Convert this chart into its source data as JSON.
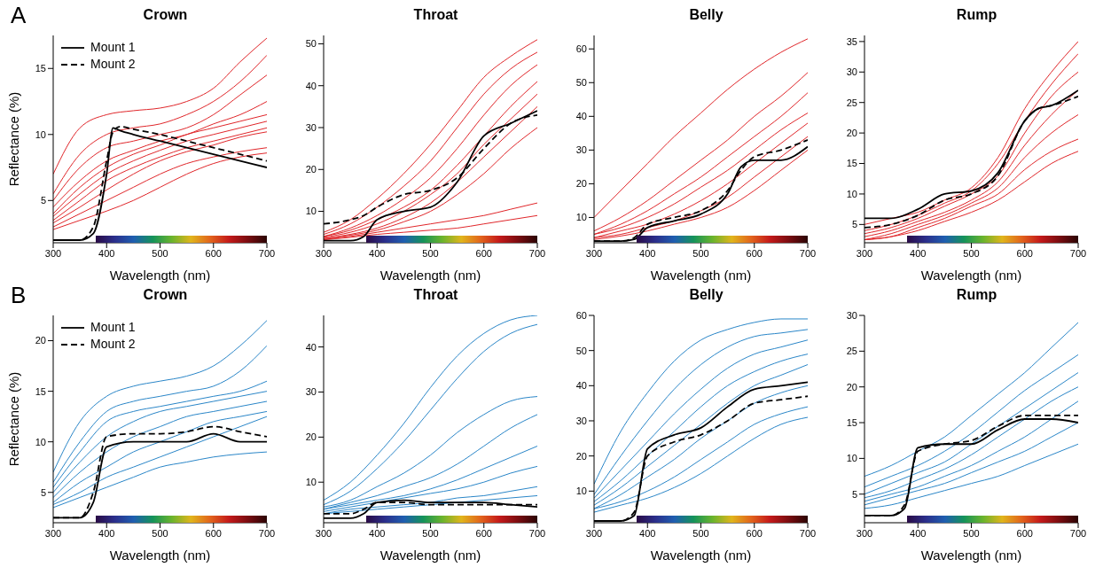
{
  "chart_data": [
    {
      "type": "line",
      "title": "Crown",
      "xlabel": "Wavelength (nm)",
      "ylabel": "Reflectance (%)",
      "annotations": [
        "A"
      ],
      "legend": "top left",
      "color": "#e0262a",
      "x": [
        300,
        350,
        400,
        450,
        500,
        550,
        600,
        650,
        700
      ],
      "xlim": [
        300,
        700
      ],
      "xticks": [
        300,
        400,
        500,
        600,
        700
      ],
      "ylim": [
        1.8,
        17.5
      ],
      "yticks": [
        5,
        10,
        15
      ],
      "series": [
        {
          "values": [
            7.0,
            10.5,
            11.5,
            11.8,
            12.0,
            12.5,
            13.5,
            15.5,
            17.3
          ]
        },
        {
          "values": [
            5.5,
            8.5,
            10.0,
            10.5,
            10.8,
            11.5,
            12.5,
            14.0,
            16.0
          ]
        },
        {
          "values": [
            5.0,
            7.5,
            9.0,
            9.5,
            10.0,
            10.5,
            11.5,
            13.0,
            14.5
          ]
        },
        {
          "values": [
            4.5,
            6.5,
            8.0,
            8.8,
            9.5,
            10.0,
            10.8,
            11.5,
            12.5
          ]
        },
        {
          "values": [
            4.0,
            6.0,
            7.5,
            8.5,
            9.2,
            10.0,
            10.5,
            11.0,
            11.5
          ]
        },
        {
          "values": [
            3.8,
            5.5,
            7.0,
            8.0,
            8.8,
            9.5,
            10.0,
            10.5,
            11.0
          ]
        },
        {
          "values": [
            3.5,
            5.0,
            6.5,
            7.5,
            8.3,
            9.0,
            9.5,
            10.0,
            10.5
          ]
        },
        {
          "values": [
            3.3,
            4.5,
            5.8,
            7.0,
            8.0,
            8.7,
            9.2,
            9.8,
            10.2
          ]
        },
        {
          "values": [
            3.0,
            4.0,
            5.0,
            6.0,
            7.0,
            7.8,
            8.3,
            8.7,
            9.0
          ]
        },
        {
          "values": [
            2.8,
            3.5,
            4.2,
            5.0,
            6.0,
            7.0,
            7.8,
            8.3,
            8.6
          ]
        },
        {
          "name": "Mount 1",
          "color": "#000000",
          "line_style": "solid",
          "x": [
            300,
            350,
            375,
            400,
            412,
            425,
            450,
            500,
            550,
            600,
            650,
            700
          ],
          "values": [
            2.0,
            2.0,
            2.5,
            7.0,
            10.5,
            10.3,
            10.0,
            9.5,
            9.0,
            8.5,
            8.0,
            7.5
          ]
        },
        {
          "name": "Mount 2",
          "color": "#000000",
          "line_style": "dashed",
          "x": [
            300,
            350,
            375,
            400,
            412,
            425,
            450,
            500,
            550,
            600,
            650,
            700
          ],
          "values": [
            2.0,
            2.0,
            3.0,
            8.0,
            10.2,
            10.6,
            10.4,
            10.0,
            9.5,
            9.0,
            8.5,
            8.0
          ]
        }
      ]
    },
    {
      "type": "line",
      "title": "Throat",
      "xlabel": "Wavelength (nm)",
      "color": "#e0262a",
      "x": [
        300,
        350,
        400,
        450,
        500,
        550,
        600,
        650,
        700
      ],
      "xlim": [
        300,
        700
      ],
      "xticks": [
        300,
        400,
        500,
        600,
        700
      ],
      "ylim": [
        2.5,
        52
      ],
      "yticks": [
        10,
        20,
        30,
        40,
        50
      ],
      "series": [
        {
          "values": [
            5,
            8,
            13,
            19,
            26,
            34,
            42,
            47,
            51
          ]
        },
        {
          "values": [
            4.5,
            7,
            11,
            16,
            22,
            30,
            38,
            44,
            48
          ]
        },
        {
          "values": [
            4,
            6,
            9,
            13,
            18,
            25,
            33,
            40,
            45
          ]
        },
        {
          "values": [
            4,
            5.5,
            8,
            11,
            15,
            21,
            28,
            35,
            41
          ]
        },
        {
          "values": [
            3.8,
            5,
            7,
            10,
            14,
            19,
            26,
            32,
            38
          ]
        },
        {
          "values": [
            3.5,
            4.5,
            6,
            8.5,
            12,
            17,
            23,
            29,
            35
          ]
        },
        {
          "values": [
            3.5,
            4.3,
            5.5,
            7.5,
            10,
            14,
            19,
            25,
            30
          ]
        },
        {
          "values": [
            3.3,
            4,
            5,
            6,
            7,
            8,
            9,
            10.5,
            12
          ]
        },
        {
          "values": [
            3.2,
            3.8,
            4.5,
            5,
            5.5,
            6,
            7,
            8,
            9
          ]
        },
        {
          "color": "#000000",
          "line_style": "solid",
          "x": [
            300,
            350,
            375,
            400,
            450,
            500,
            550,
            600,
            650,
            700
          ],
          "values": [
            3,
            3,
            4,
            8,
            10,
            11,
            17,
            28,
            31,
            34
          ]
        },
        {
          "color": "#000000",
          "line_style": "dashed",
          "x": [
            300,
            350,
            375,
            400,
            450,
            500,
            550,
            600,
            650,
            700
          ],
          "values": [
            7,
            8,
            9,
            11,
            14,
            15,
            18,
            25,
            31,
            33
          ]
        }
      ]
    },
    {
      "type": "line",
      "title": "Belly",
      "xlabel": "Wavelength (nm)",
      "color": "#e0262a",
      "x": [
        300,
        350,
        400,
        450,
        500,
        550,
        600,
        650,
        700
      ],
      "xlim": [
        300,
        700
      ],
      "xticks": [
        300,
        400,
        500,
        600,
        700
      ],
      "ylim": [
        2.5,
        64
      ],
      "yticks": [
        10,
        20,
        30,
        40,
        50,
        60
      ],
      "series": [
        {
          "values": [
            10,
            18,
            26,
            34,
            41,
            48,
            54,
            59,
            63
          ]
        },
        {
          "values": [
            6,
            10,
            15,
            21,
            27,
            33,
            40,
            46,
            53
          ]
        },
        {
          "values": [
            5,
            8,
            12,
            17,
            22,
            28,
            34,
            40,
            47
          ]
        },
        {
          "values": [
            5,
            7,
            10,
            14,
            19,
            24,
            30,
            36,
            41
          ]
        },
        {
          "values": [
            4,
            6,
            8,
            11,
            15,
            20,
            26,
            32,
            38
          ]
        },
        {
          "values": [
            4,
            5,
            7,
            9,
            12,
            16,
            22,
            28,
            34
          ]
        },
        {
          "values": [
            3.5,
            4.5,
            6,
            8,
            10,
            13,
            18,
            24,
            30
          ]
        },
        {
          "color": "#000000",
          "line_style": "solid",
          "x": [
            300,
            350,
            375,
            400,
            450,
            500,
            550,
            575,
            600,
            650,
            700
          ],
          "values": [
            3,
            3,
            3.5,
            7,
            9,
            11,
            17,
            25,
            27,
            27,
            31
          ]
        },
        {
          "color": "#000000",
          "line_style": "dashed",
          "x": [
            300,
            350,
            375,
            400,
            450,
            500,
            550,
            575,
            600,
            650,
            700
          ],
          "values": [
            3,
            3,
            4,
            8,
            10,
            12,
            18,
            24,
            28,
            30,
            33
          ]
        }
      ]
    },
    {
      "type": "line",
      "title": "Rump",
      "xlabel": "Wavelength (nm)",
      "color": "#e0262a",
      "x": [
        300,
        350,
        400,
        450,
        500,
        550,
        600,
        650,
        700
      ],
      "xlim": [
        300,
        700
      ],
      "xticks": [
        300,
        400,
        500,
        600,
        700
      ],
      "ylim": [
        2,
        36
      ],
      "yticks": [
        5,
        10,
        15,
        20,
        25,
        30,
        35
      ],
      "series": [
        {
          "values": [
            5,
            6,
            7,
            9,
            11,
            16,
            24,
            30,
            35
          ]
        },
        {
          "values": [
            4,
            5,
            6.5,
            8.5,
            10.5,
            15,
            22,
            28,
            33
          ]
        },
        {
          "values": [
            3.5,
            4.5,
            6,
            8,
            10,
            13,
            20,
            26,
            30
          ]
        },
        {
          "values": [
            3,
            4,
            5.5,
            7,
            9,
            12,
            18,
            23,
            27
          ]
        },
        {
          "values": [
            2.5,
            3.5,
            5,
            6.5,
            8.5,
            11,
            16,
            20,
            23
          ]
        },
        {
          "values": [
            2.5,
            3,
            4.5,
            6,
            8,
            10,
            14,
            17,
            19
          ]
        },
        {
          "values": [
            2.5,
            3,
            4,
            5.5,
            7,
            9,
            12,
            15,
            17
          ]
        },
        {
          "color": "#000000",
          "line_style": "solid",
          "x": [
            300,
            350,
            400,
            450,
            500,
            550,
            600,
            625,
            650,
            700
          ],
          "values": [
            6,
            6,
            7.5,
            10,
            10.5,
            13.5,
            22,
            24,
            24.5,
            27
          ]
        },
        {
          "color": "#000000",
          "line_style": "dashed",
          "x": [
            300,
            350,
            400,
            450,
            500,
            550,
            600,
            625,
            650,
            700
          ],
          "values": [
            4.5,
            5,
            6.5,
            9,
            10,
            13,
            22,
            24,
            24.5,
            26
          ]
        }
      ]
    },
    {
      "type": "line",
      "title": "Crown",
      "xlabel": "Wavelength (nm)",
      "ylabel": "Reflectance (%)",
      "annotations": [
        "B"
      ],
      "legend": "top left",
      "color": "#2a86c8",
      "x": [
        300,
        350,
        400,
        450,
        500,
        550,
        600,
        650,
        700
      ],
      "xlim": [
        300,
        700
      ],
      "xticks": [
        300,
        400,
        500,
        600,
        700
      ],
      "ylim": [
        2,
        22.5
      ],
      "yticks": [
        5,
        10,
        15,
        20
      ],
      "series": [
        {
          "values": [
            7,
            12,
            14.5,
            15.5,
            16,
            16.5,
            17.5,
            19.5,
            22
          ]
        },
        {
          "values": [
            6,
            10,
            13,
            14,
            14.5,
            15,
            15.5,
            17,
            19.5
          ]
        },
        {
          "values": [
            5.5,
            9,
            12,
            13,
            13.5,
            14,
            14.5,
            15,
            16
          ]
        },
        {
          "values": [
            5,
            8,
            10.5,
            12,
            13,
            13.5,
            14,
            14.5,
            15
          ]
        },
        {
          "values": [
            4.5,
            7,
            9,
            10.5,
            11.5,
            12.5,
            13,
            13.5,
            14
          ]
        },
        {
          "values": [
            4,
            6,
            7.5,
            9,
            10,
            11,
            12,
            12.5,
            13
          ]
        },
        {
          "values": [
            3.8,
            5,
            6.5,
            7.5,
            8.5,
            9.5,
            10.5,
            11.5,
            12.5
          ]
        },
        {
          "values": [
            3.5,
            4.5,
            5.5,
            6.5,
            7.5,
            8,
            8.5,
            8.8,
            9
          ]
        },
        {
          "name": "Mount 1",
          "color": "#000000",
          "line_style": "solid",
          "x": [
            300,
            350,
            375,
            400,
            450,
            500,
            550,
            600,
            650,
            700
          ],
          "values": [
            2.5,
            2.5,
            4,
            9.5,
            10,
            10,
            10,
            10.8,
            10,
            10
          ]
        },
        {
          "name": "Mount 2",
          "color": "#000000",
          "line_style": "dashed",
          "x": [
            300,
            350,
            375,
            400,
            450,
            500,
            550,
            600,
            650,
            700
          ],
          "values": [
            2.5,
            2.5,
            5,
            10.5,
            10.8,
            10.8,
            11,
            11.5,
            11,
            10.5
          ]
        }
      ]
    },
    {
      "type": "line",
      "title": "Throat",
      "xlabel": "Wavelength (nm)",
      "color": "#2a86c8",
      "x": [
        300,
        350,
        400,
        450,
        500,
        550,
        600,
        650,
        700
      ],
      "xlim": [
        300,
        700
      ],
      "xticks": [
        300,
        400,
        500,
        600,
        700
      ],
      "ylim": [
        1,
        47
      ],
      "yticks": [
        10,
        20,
        30,
        40
      ],
      "series": [
        {
          "values": [
            6,
            10,
            16,
            23,
            31,
            38,
            43,
            46,
            47
          ]
        },
        {
          "values": [
            5,
            8,
            13,
            19,
            26,
            33,
            39,
            43,
            45
          ]
        },
        {
          "values": [
            4.5,
            6,
            9,
            12,
            16,
            21,
            25,
            28,
            29
          ]
        },
        {
          "values": [
            4,
            5.5,
            7,
            9,
            11,
            14,
            18,
            22,
            25
          ]
        },
        {
          "values": [
            4,
            5,
            6,
            7,
            8.5,
            10.5,
            13,
            15.5,
            18
          ]
        },
        {
          "values": [
            3.5,
            4.5,
            5.5,
            6.5,
            7.5,
            8.5,
            10,
            12,
            13.5
          ]
        },
        {
          "values": [
            3,
            4,
            4.5,
            5,
            5.5,
            6.5,
            7,
            8,
            9
          ]
        },
        {
          "values": [
            3,
            3.5,
            4,
            4.5,
            5,
            5.5,
            6,
            6.5,
            7
          ]
        },
        {
          "color": "#000000",
          "line_style": "solid",
          "x": [
            300,
            350,
            375,
            400,
            450,
            500,
            550,
            600,
            650,
            700
          ],
          "values": [
            2,
            2,
            3,
            5.5,
            6,
            5.5,
            5.5,
            5.5,
            5,
            4.5
          ]
        },
        {
          "color": "#000000",
          "line_style": "dashed",
          "x": [
            300,
            350,
            375,
            400,
            450,
            500,
            550,
            600,
            650,
            700
          ],
          "values": [
            3,
            3,
            4,
            5.5,
            5.5,
            5,
            5,
            5,
            5,
            5
          ]
        }
      ]
    },
    {
      "type": "line",
      "title": "Belly",
      "xlabel": "Wavelength (nm)",
      "color": "#2a86c8",
      "x": [
        300,
        350,
        400,
        450,
        500,
        550,
        600,
        650,
        700
      ],
      "xlim": [
        300,
        700
      ],
      "xticks": [
        300,
        400,
        500,
        600,
        700
      ],
      "ylim": [
        1,
        60
      ],
      "yticks": [
        10,
        20,
        30,
        40,
        50,
        60
      ],
      "series": [
        {
          "values": [
            12,
            27,
            38,
            47,
            53,
            56,
            58,
            59,
            59
          ]
        },
        {
          "values": [
            9,
            20,
            30,
            39,
            46,
            51,
            54,
            55,
            56
          ]
        },
        {
          "values": [
            8,
            16,
            24,
            32,
            39,
            45,
            49,
            51,
            53
          ]
        },
        {
          "values": [
            7,
            13,
            20,
            27,
            34,
            40,
            44,
            47,
            49
          ]
        },
        {
          "values": [
            6,
            11,
            17,
            23,
            29,
            35,
            40,
            43,
            46
          ]
        },
        {
          "values": [
            5,
            9,
            14,
            19,
            25,
            30,
            35,
            38,
            40
          ]
        },
        {
          "values": [
            5,
            7,
            10,
            14,
            19,
            24,
            29,
            32,
            34
          ]
        },
        {
          "values": [
            4,
            6,
            8,
            11,
            15,
            20,
            25,
            29,
            31
          ]
        },
        {
          "color": "#000000",
          "line_style": "solid",
          "x": [
            300,
            350,
            375,
            400,
            450,
            500,
            550,
            600,
            650,
            700
          ],
          "values": [
            1.5,
            1.5,
            3,
            22,
            26,
            28,
            34,
            39,
            40,
            41
          ]
        },
        {
          "color": "#000000",
          "line_style": "dashed",
          "x": [
            300,
            350,
            375,
            400,
            450,
            500,
            550,
            600,
            650,
            700
          ],
          "values": [
            1.5,
            1.5,
            4,
            20,
            24,
            26,
            30,
            35,
            36,
            37
          ]
        }
      ]
    },
    {
      "type": "line",
      "title": "Rump",
      "xlabel": "Wavelength (nm)",
      "color": "#2a86c8",
      "x": [
        300,
        350,
        400,
        450,
        500,
        550,
        600,
        650,
        700
      ],
      "xlim": [
        300,
        700
      ],
      "xticks": [
        300,
        400,
        500,
        600,
        700
      ],
      "ylim": [
        1,
        30
      ],
      "yticks": [
        5,
        10,
        15,
        20,
        25,
        30
      ],
      "series": [
        {
          "values": [
            7.5,
            9,
            11,
            13,
            16,
            19,
            22,
            25.5,
            29
          ]
        },
        {
          "values": [
            6,
            7.5,
            9,
            11,
            13.5,
            16.5,
            19.5,
            22,
            24.5
          ]
        },
        {
          "values": [
            5,
            6.5,
            8,
            9.5,
            12,
            14.5,
            17,
            19.5,
            22
          ]
        },
        {
          "values": [
            4.5,
            5.5,
            7,
            8.5,
            10.5,
            13,
            15.5,
            18,
            20
          ]
        },
        {
          "values": [
            4,
            5,
            6,
            7.5,
            9,
            11,
            13,
            15.5,
            18
          ]
        },
        {
          "values": [
            3.5,
            4.5,
            5.5,
            6.5,
            8,
            9.5,
            11,
            13,
            15
          ]
        },
        {
          "values": [
            3,
            3.5,
            4.5,
            5.5,
            6.5,
            7.5,
            9,
            10.5,
            12
          ]
        },
        {
          "color": "#000000",
          "line_style": "solid",
          "x": [
            300,
            350,
            375,
            400,
            450,
            500,
            550,
            600,
            650,
            700
          ],
          "values": [
            2,
            2,
            3,
            11.5,
            12,
            12,
            14,
            15.5,
            15.5,
            15
          ]
        },
        {
          "color": "#000000",
          "line_style": "dashed",
          "x": [
            300,
            350,
            375,
            400,
            450,
            500,
            550,
            600,
            650,
            700
          ],
          "values": [
            2,
            2,
            3.5,
            11,
            12,
            12.5,
            14.5,
            16,
            16,
            16
          ]
        }
      ]
    }
  ]
}
